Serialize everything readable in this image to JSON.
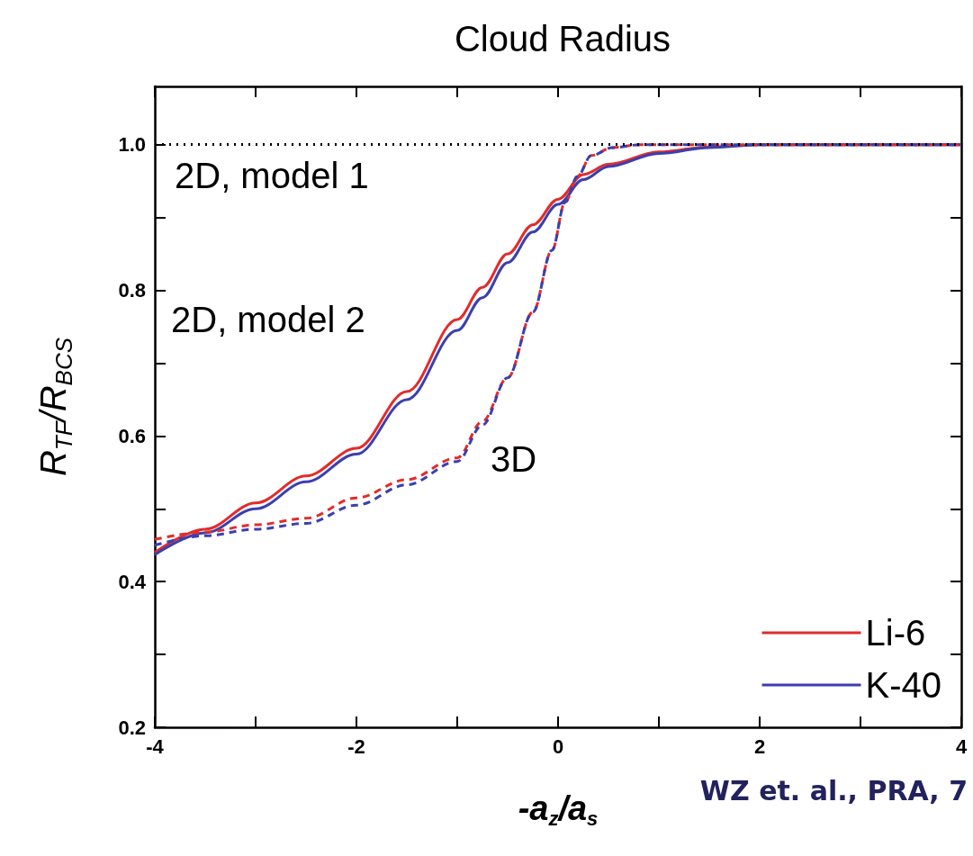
{
  "chart_data": {
    "type": "line",
    "title": "Cloud Radius",
    "xlabel": "-a$_{z}$/a$_{s}$",
    "ylabel": "R$_{TF}$/R$_{BCS}$",
    "xlim": [
      -4,
      4
    ],
    "xticks": [
      -4,
      {
        "value": -3,
        "label": null
      },
      -2,
      {
        "value": -1,
        "label": null
      },
      0,
      {
        "value": 1,
        "label": null
      },
      2,
      {
        "value": 3,
        "label": null
      },
      4
    ],
    "ylim": [
      0.2,
      1.08
    ],
    "yticks": [
      0.2,
      {
        "value": 0.3,
        "label": null
      },
      0.4,
      {
        "value": 0.5,
        "label": null
      },
      0.6,
      {
        "value": 0.7,
        "label": null
      },
      0.8,
      {
        "value": 0.9,
        "label": null
      },
      {
        "value": 1,
        "label": "1.0"
      }
    ],
    "grid": false,
    "marker": "none",
    "legend": "bottom right",
    "series": [
      {
        "name": "Li-6",
        "color": "#e32b2b",
        "line_style": "solid",
        "x": [
          -4,
          -3.5,
          -3,
          -2.5,
          -2,
          -1.5,
          -1,
          -0.75,
          -0.5,
          -0.25,
          0,
          0.25,
          0.5,
          1,
          1.5,
          2,
          4
        ],
        "values": [
          0.44,
          0.472,
          0.508,
          0.545,
          0.583,
          0.661,
          0.76,
          0.804,
          0.85,
          0.89,
          0.925,
          0.959,
          0.973,
          0.99,
          0.997,
          1,
          1
        ]
      },
      {
        "name": "K-40",
        "color": "#3a3fb0",
        "line_style": "solid",
        "x": [
          -4,
          -3.5,
          -3,
          -2.5,
          -2,
          -1.5,
          -1,
          -0.75,
          -0.5,
          -0.25,
          0,
          0.25,
          0.5,
          1,
          1.5,
          2,
          4
        ],
        "values": [
          0.437,
          0.467,
          0.5,
          0.537,
          0.575,
          0.65,
          0.745,
          0.79,
          0.838,
          0.88,
          0.918,
          0.952,
          0.97,
          0.988,
          0.996,
          1,
          1
        ]
      },
      {
        "color": "#e32b2b",
        "line_style": "dashed",
        "x": [
          -4,
          -3.5,
          -3,
          -2.5,
          -2,
          -1.5,
          -1,
          -0.75,
          -0.5,
          -0.25,
          -0.06,
          0.07,
          0.19,
          0.33,
          0.54,
          0.82,
          4
        ],
        "values": [
          0.458,
          0.468,
          0.478,
          0.487,
          0.515,
          0.54,
          0.57,
          0.62,
          0.68,
          0.77,
          0.855,
          0.921,
          0.956,
          0.985,
          0.996,
          1,
          1
        ]
      },
      {
        "color": "#3a3fb0",
        "line_style": "dashed",
        "x": [
          -4,
          -3.5,
          -3,
          -2.5,
          -2,
          -1.5,
          -1,
          -0.75,
          -0.5,
          -0.25,
          -0.06,
          0.07,
          0.19,
          0.33,
          0.54,
          0.82,
          4
        ],
        "values": [
          0.45,
          0.463,
          0.472,
          0.48,
          0.505,
          0.533,
          0.565,
          0.615,
          0.68,
          0.77,
          0.855,
          0.921,
          0.956,
          0.985,
          0.996,
          1,
          1
        ]
      }
    ],
    "ref_lines": [
      {
        "axis": "y",
        "value": 1,
        "label": "2D, model 1",
        "color": "#000000",
        "line_style": "dotted"
      }
    ],
    "annotations": [
      "2D, model 2",
      "3D",
      "WZ et. al., PRA, 7"
    ]
  }
}
